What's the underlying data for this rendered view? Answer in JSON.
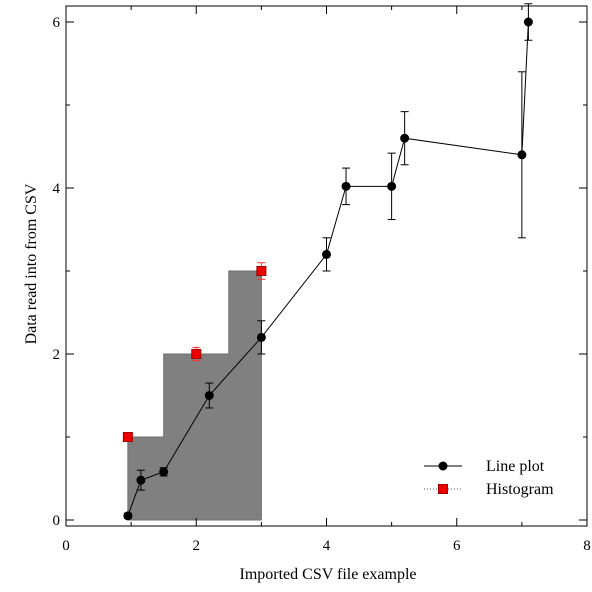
{
  "chart_data": {
    "type": "line",
    "title": "",
    "xlabel": "Imported CSV file example",
    "ylabel": "Data read into from CSV",
    "xlim": [
      0,
      8
    ],
    "ylim": [
      0,
      6
    ],
    "x_ticks": [
      "0",
      "2",
      "4",
      "6",
      "8"
    ],
    "y_ticks": [
      "0",
      "2",
      "4",
      "6"
    ],
    "grid": false,
    "legend_position": "bottom-right",
    "series": [
      {
        "name": "Line plot",
        "kind": "line",
        "color": "#000000",
        "marker": "circle",
        "x": [
          0.95,
          1.15,
          1.5,
          2.2,
          3.0,
          4.0,
          4.3,
          5.0,
          5.2,
          7.0,
          7.1
        ],
        "y": [
          0.05,
          0.48,
          0.58,
          1.5,
          2.2,
          3.2,
          4.02,
          4.02,
          4.6,
          4.4,
          6.0
        ],
        "yerr": [
          0.03,
          0.12,
          0.05,
          0.15,
          0.2,
          0.2,
          0.22,
          0.4,
          0.32,
          1.0,
          0.22
        ]
      },
      {
        "name": "Histogram",
        "kind": "histogram",
        "fill": "#808080",
        "marker": "square",
        "marker_color": "#ee0000",
        "bins": [
          {
            "from": 0.95,
            "to": 1.5,
            "value": 1
          },
          {
            "from": 1.5,
            "to": 2.5,
            "value": 2
          },
          {
            "from": 2.5,
            "to": 3.0,
            "value": 3
          }
        ],
        "x": [
          0.95,
          2.0,
          3.0
        ],
        "y": [
          1,
          2,
          3
        ],
        "yerr": [
          0.05,
          0.08,
          0.1
        ]
      }
    ]
  }
}
